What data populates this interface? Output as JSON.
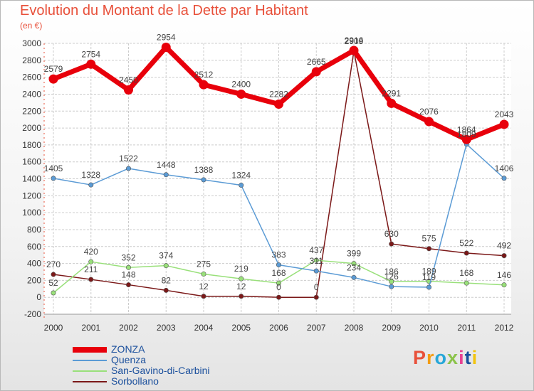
{
  "header": {
    "title": "Evolution du Montant de la Dette par Habitant",
    "subtitle": "(en €)"
  },
  "logo": {
    "text": "Proxiti",
    "colors": [
      "#e8503a",
      "#f39c12",
      "#27a7d8",
      "#8bc34a",
      "#e84393",
      "#1a4f9c",
      "#f1c40f"
    ]
  },
  "colors": {
    "title": "#e8503a",
    "grid": "#cccccc",
    "axis_text": "#333333",
    "label_text": "#444444",
    "legend_text": "#1a4f9c"
  },
  "chart_data": {
    "type": "line",
    "title": "Evolution du Montant de la Dette par Habitant",
    "subtitle": "(en €)",
    "x": [
      "2000",
      "2001",
      "2002",
      "2003",
      "2004",
      "2005",
      "2006",
      "2007",
      "2008",
      "2009",
      "2010",
      "2011",
      "2012"
    ],
    "ylim": [
      -200,
      3000
    ],
    "yticks": [
      -200,
      0,
      200,
      400,
      600,
      800,
      1000,
      1200,
      1400,
      1600,
      1800,
      2000,
      2200,
      2400,
      2600,
      2800,
      3000
    ],
    "grid": true,
    "legend": "bottom-left",
    "series": [
      {
        "name": "ZONZA",
        "color": "#e8000b",
        "values": [
          2579,
          2754,
          2450,
          2954,
          2512,
          2400,
          2282,
          2665,
          2916,
          2291,
          2076,
          1864,
          2043
        ]
      },
      {
        "name": "Quenza",
        "color": "#5b9bd5",
        "values": [
          1405,
          1328,
          1522,
          1448,
          1388,
          1324,
          383,
          311,
          234,
          126,
          119,
          1809,
          1406
        ]
      },
      {
        "name": "San-Gavino-di-Carbini",
        "color": "#99e07a",
        "values": [
          52,
          420,
          352,
          374,
          275,
          219,
          168,
          437,
          399,
          186,
          189,
          168,
          146
        ]
      },
      {
        "name": "Sorbollano",
        "color": "#7b1818",
        "values": [
          270,
          211,
          148,
          82,
          12,
          12,
          0,
          0,
          2909,
          630,
          575,
          522,
          492
        ]
      }
    ]
  }
}
